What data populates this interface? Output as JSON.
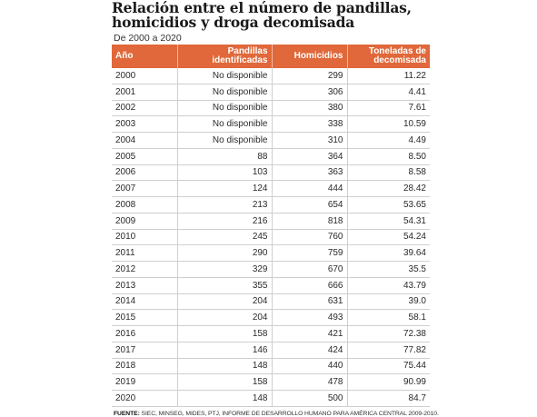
{
  "title": {
    "line1": "Relación entre el número de pandillas,",
    "line2": "homicidios y droga decomisada"
  },
  "subtitle": "De 2000 a 2020",
  "columns": {
    "year": "Año",
    "gangs_line1": "Pandillas",
    "gangs_line2": "identificadas",
    "homicides": "Homicidios",
    "drugs_line1": "Toneladas de",
    "drugs_line2": "decomisada"
  },
  "rows": [
    {
      "year": "2000",
      "gangs": "No disponible",
      "homicides": "299",
      "drugs": "11.22"
    },
    {
      "year": "2001",
      "gangs": "No disponible",
      "homicides": "306",
      "drugs": "4.41"
    },
    {
      "year": "2002",
      "gangs": "No disponible",
      "homicides": "380",
      "drugs": "7.61"
    },
    {
      "year": "2003",
      "gangs": "No disponible",
      "homicides": "338",
      "drugs": "10.59"
    },
    {
      "year": "2004",
      "gangs": "No disponible",
      "homicides": "310",
      "drugs": "4.49"
    },
    {
      "year": "2005",
      "gangs": "88",
      "homicides": "364",
      "drugs": "8.50"
    },
    {
      "year": "2006",
      "gangs": "103",
      "homicides": "363",
      "drugs": "8.58"
    },
    {
      "year": "2007",
      "gangs": "124",
      "homicides": "444",
      "drugs": "28.42"
    },
    {
      "year": "2008",
      "gangs": "213",
      "homicides": "654",
      "drugs": "53.65"
    },
    {
      "year": "2009",
      "gangs": "216",
      "homicides": "818",
      "drugs": "54.31"
    },
    {
      "year": "2010",
      "gangs": "245",
      "homicides": "760",
      "drugs": "54.24"
    },
    {
      "year": "2011",
      "gangs": "290",
      "homicides": "759",
      "drugs": "39.64"
    },
    {
      "year": "2012",
      "gangs": "329",
      "homicides": "670",
      "drugs": "35.5"
    },
    {
      "year": "2013",
      "gangs": "355",
      "homicides": "666",
      "drugs": "43.79"
    },
    {
      "year": "2014",
      "gangs": "204",
      "homicides": "631",
      "drugs": "39.0"
    },
    {
      "year": "2015",
      "gangs": "204",
      "homicides": "493",
      "drugs": "58.1"
    },
    {
      "year": "2016",
      "gangs": "158",
      "homicides": "421",
      "drugs": "72.38"
    },
    {
      "year": "2017",
      "gangs": "146",
      "homicides": "424",
      "drugs": "77.82"
    },
    {
      "year": "2018",
      "gangs": "148",
      "homicides": "440",
      "drugs": "75.44"
    },
    {
      "year": "2019",
      "gangs": "158",
      "homicides": "478",
      "drugs": "90.99"
    },
    {
      "year": "2020",
      "gangs": "148",
      "homicides": "500",
      "drugs": "84.7"
    }
  ],
  "source": {
    "label": "FUENTE:",
    "text": " SIEC, MINSEG, MIDES, PTJ, INFORME DE DESARROLLO HUMANO PARA AMÉRICA CENTRAL 2009-2010."
  },
  "colors": {
    "header_bg": "#e0683a",
    "header_text": "#ffffff",
    "row_border": "#cfcfcf"
  }
}
